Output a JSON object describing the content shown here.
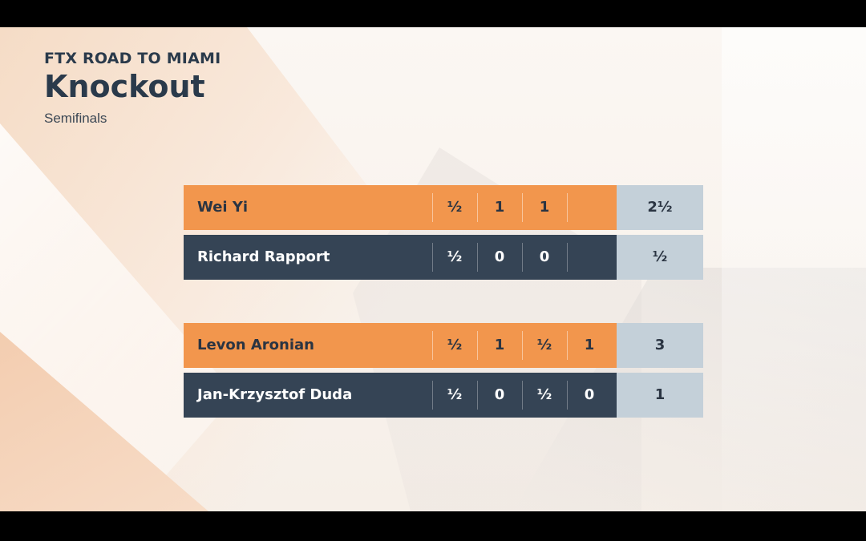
{
  "header": {
    "event": "FTX ROAD TO MIAMI",
    "title": "Knockout",
    "round": "Semifinals"
  },
  "colors": {
    "winner_row": "#f2964d",
    "loser_row": "#354455",
    "total_cell": "#c4d0d9",
    "heading_text": "#2a3a4b"
  },
  "matches": [
    {
      "players": [
        {
          "name": "Wei Yi",
          "games": [
            "½",
            "1",
            "1",
            ""
          ],
          "total": "2½"
        },
        {
          "name": "Richard Rapport",
          "games": [
            "½",
            "0",
            "0",
            ""
          ],
          "total": "½"
        }
      ]
    },
    {
      "players": [
        {
          "name": "Levon Aronian",
          "games": [
            "½",
            "1",
            "½",
            "1"
          ],
          "total": "3"
        },
        {
          "name": "Jan-Krzysztof Duda",
          "games": [
            "½",
            "0",
            "½",
            "0"
          ],
          "total": "1"
        }
      ]
    }
  ]
}
